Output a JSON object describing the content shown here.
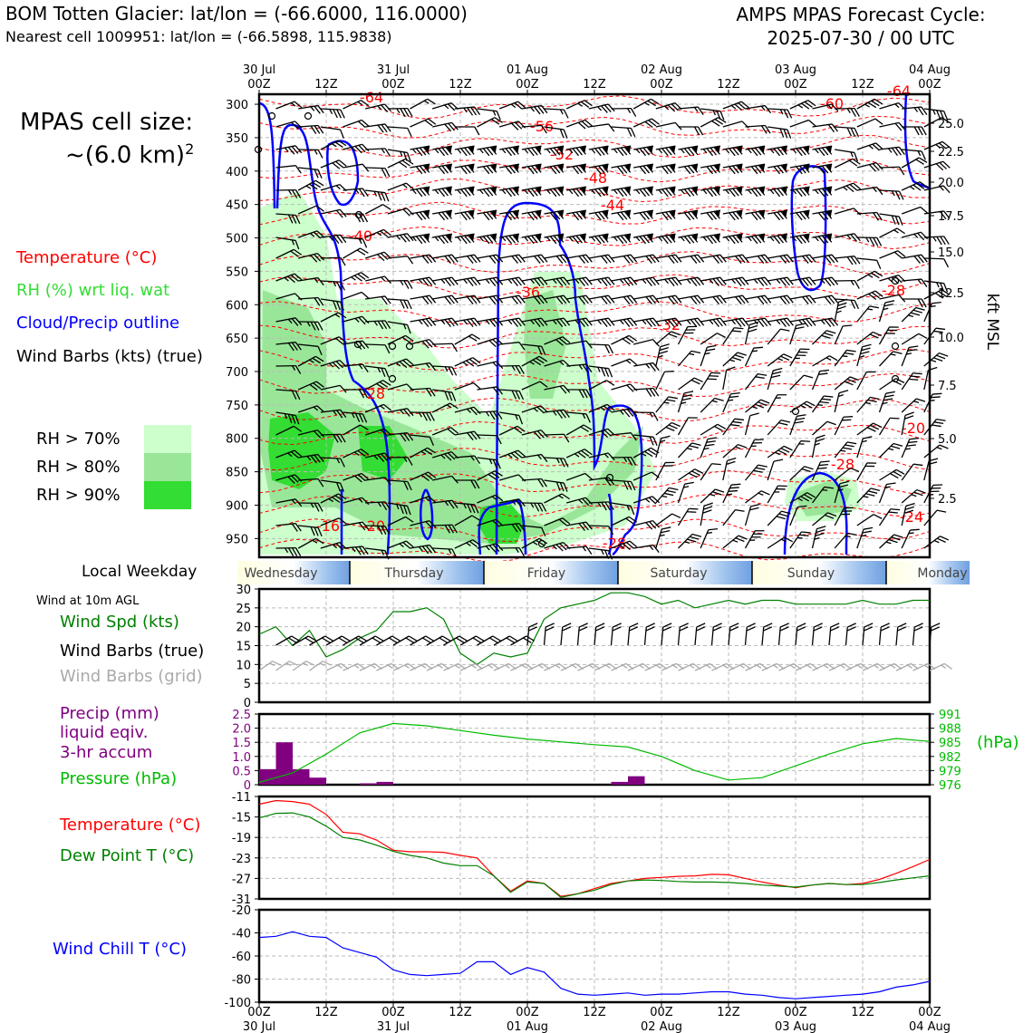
{
  "header": {
    "title": "BOM Totten Glacier: lat/lon = (-66.6000, 116.0000)",
    "subtitle": "Nearest cell 1009951: lat/lon = (-66.5898, 115.9838)",
    "cycle_line1": "AMPS MPAS Forecast Cycle:",
    "cycle_line2": "2025-07-30 / 00 UTC"
  },
  "cell_size": {
    "label": "MPAS cell size:",
    "value": "~(6.0 km)",
    "exponent": "2"
  },
  "legend": {
    "temperature": "Temperature (°C)",
    "rh": "RH (%) wrt liq. wat",
    "cloud": "Cloud/Precip outline",
    "wind_barbs": "Wind Barbs (kts) (true)"
  },
  "rh_key": [
    {
      "label": "RH > 70%",
      "color": "#ccffcc"
    },
    {
      "label": "RH > 80%",
      "color": "#99e699"
    },
    {
      "label": "RH > 90%",
      "color": "#33dd33"
    }
  ],
  "colors": {
    "temperature": "#ff0000",
    "rh_text": "#33dd33",
    "cloud": "#0000ff",
    "wind_speed": "#008000",
    "precip": "#800080",
    "pressure": "#00bb00",
    "dewpoint": "#008000",
    "wind_chill": "#0000ff",
    "grid_barb": "#aaaaaa"
  },
  "time_axis": {
    "top_hours": [
      "00Z",
      "12Z",
      "00Z",
      "12Z",
      "00Z",
      "12Z",
      "00Z",
      "12Z",
      "00Z",
      "12Z",
      "00Z"
    ],
    "dates": [
      "30 Jul",
      "31 Jul",
      "01 Aug",
      "02 Aug",
      "03 Aug",
      "04 Aug"
    ]
  },
  "weekday": {
    "label": "Local Weekday",
    "days": [
      "Wednesday",
      "Thursday",
      "Friday",
      "Saturday",
      "Sunday",
      "Monday"
    ]
  },
  "panels": {
    "wind": {
      "heading": "Wind at 10m AGL",
      "speed": "Wind Spd (kts)",
      "barbs_true": "Wind Barbs (true)",
      "barbs_grid": "Wind Barbs (grid)"
    },
    "precip": {
      "line1": "Precip (mm)",
      "line2": "liquid eqiv.",
      "line3": "3-hr accum",
      "pressure": "Pressure (hPa)",
      "pressure_unit": "(hPa)"
    },
    "temp": {
      "temperature": "Temperature (°C)",
      "dewpoint": "Dew Point T (°C)"
    },
    "windchill": {
      "label": "Wind Chill T (°C)"
    }
  },
  "chart_data": [
    {
      "type": "heatmap",
      "y_axis_ticks": [
        "300",
        "350",
        "400",
        "450",
        "500",
        "550",
        "600",
        "650",
        "700",
        "750",
        "800",
        "850",
        "900",
        "950"
      ],
      "y_axis_scale": "pressure (hPa), inverted",
      "right_axis_label": "kft MSL",
      "right_axis_ticks": [
        "25.0",
        "22.5",
        "20.0",
        "17.5",
        "15.0",
        "12.5",
        "10.0",
        "7.5",
        "5.0",
        "2.5"
      ],
      "temperature_contour_labels": [
        "-64",
        "-56",
        "-52",
        "-48",
        "-44",
        "-40",
        "-36",
        "-32",
        "-28",
        "-20",
        "-16",
        "-60",
        "-64",
        "-28",
        "-20",
        "-28",
        "-24",
        "-28"
      ]
    },
    {
      "type": "line",
      "name": "Wind Spd (kts)",
      "ylim": [
        0,
        30
      ],
      "y_ticks": [
        "0",
        "5",
        "10",
        "15",
        "20",
        "25",
        "30"
      ],
      "hours": [
        0,
        3,
        6,
        9,
        12,
        15,
        18,
        21,
        24,
        27,
        30,
        33,
        36,
        39,
        42,
        45,
        48,
        51,
        54,
        57,
        60,
        63,
        66,
        69,
        72,
        75,
        78,
        81,
        84,
        87,
        90,
        93,
        96,
        99,
        102,
        105,
        108,
        111,
        114,
        117,
        120
      ],
      "values": [
        18,
        20,
        15,
        19,
        12,
        14,
        17,
        19,
        24,
        24,
        25,
        22,
        13,
        10,
        13,
        12,
        13,
        22,
        25,
        26,
        27,
        29,
        29,
        28,
        26,
        27,
        25,
        26,
        27,
        26,
        27,
        27,
        26,
        26,
        26,
        26,
        27,
        26,
        26,
        27,
        27
      ]
    },
    {
      "type": "bar",
      "name": "Precip 3-hr accum (mm)",
      "ylim": [
        0,
        2.5
      ],
      "y_ticks": [
        "0",
        "0.5",
        "1.0",
        "1.5",
        "2.0",
        "2.5"
      ],
      "bars": [
        {
          "start_h": 0,
          "end_h": 3,
          "value": 0.55
        },
        {
          "start_h": 3,
          "end_h": 6,
          "value": 1.5
        },
        {
          "start_h": 6,
          "end_h": 9,
          "value": 0.55
        },
        {
          "start_h": 9,
          "end_h": 12,
          "value": 0.25
        },
        {
          "start_h": 18,
          "end_h": 21,
          "value": 0.05
        },
        {
          "start_h": 21,
          "end_h": 24,
          "value": 0.1
        },
        {
          "start_h": 63,
          "end_h": 66,
          "value": 0.1
        },
        {
          "start_h": 66,
          "end_h": 69,
          "value": 0.3
        }
      ]
    },
    {
      "type": "line",
      "name": "Pressure (hPa)",
      "ylim": [
        976,
        991
      ],
      "y_ticks": [
        "991",
        "988",
        "985",
        "982",
        "979",
        "976"
      ],
      "hours": [
        0,
        6,
        12,
        18,
        24,
        30,
        36,
        42,
        48,
        54,
        60,
        66,
        72,
        78,
        84,
        90,
        96,
        102,
        108,
        114,
        120
      ],
      "values": [
        976.5,
        978.5,
        982.5,
        987,
        989,
        988.5,
        987.5,
        986.5,
        985.7,
        985.1,
        984.5,
        984,
        982,
        979,
        977,
        977.5,
        980,
        982.5,
        984.7,
        985.8,
        985.2
      ]
    },
    {
      "type": "line",
      "name": "Temperature / Dew Point (°C)",
      "ylim": [
        -31,
        -11
      ],
      "y_ticks": [
        "-11",
        "-15",
        "-19",
        "-23",
        "-27",
        "-31"
      ],
      "hours": [
        0,
        3,
        6,
        9,
        12,
        15,
        18,
        21,
        24,
        27,
        30,
        33,
        36,
        39,
        42,
        45,
        48,
        51,
        54,
        57,
        60,
        63,
        66,
        69,
        72,
        75,
        78,
        81,
        84,
        87,
        90,
        93,
        96,
        99,
        102,
        105,
        108,
        111,
        114,
        117,
        120
      ],
      "series": [
        {
          "name": "Temperature (°C)",
          "values": [
            -12.5,
            -11.8,
            -12,
            -12.5,
            -14.5,
            -18,
            -18.3,
            -19.5,
            -21.5,
            -21.8,
            -21.8,
            -21.9,
            -22.5,
            -23,
            -26.5,
            -29.5,
            -27.5,
            -28,
            -30.5,
            -30,
            -29,
            -28,
            -27.5,
            -27,
            -26.8,
            -26.6,
            -26.5,
            -26.2,
            -26.3,
            -27,
            -27.7,
            -28.3,
            -28.8,
            -28.3,
            -28,
            -28.2,
            -28,
            -27.2,
            -26,
            -24.7,
            -23.3
          ]
        },
        {
          "name": "Dew Point T (°C)",
          "values": [
            -15.2,
            -14.3,
            -14.2,
            -15,
            -16.8,
            -19,
            -19.5,
            -20.5,
            -21.7,
            -22.5,
            -23,
            -24,
            -24.5,
            -24.5,
            -26.5,
            -29.7,
            -27.7,
            -28,
            -30.7,
            -30,
            -29.3,
            -28.2,
            -27.5,
            -27.3,
            -27.4,
            -27.6,
            -27.7,
            -27.7,
            -27.8,
            -28,
            -28.3,
            -28.5,
            -28.7,
            -28.3,
            -28,
            -28.2,
            -28.2,
            -27.8,
            -27.3,
            -26.9,
            -26.5
          ]
        }
      ]
    },
    {
      "type": "line",
      "name": "Wind Chill T (°C)",
      "ylim": [
        -100,
        -20
      ],
      "y_ticks": [
        "-20",
        "-40",
        "-60",
        "-80",
        "-100"
      ],
      "hours": [
        0,
        3,
        6,
        9,
        12,
        15,
        18,
        21,
        24,
        27,
        30,
        33,
        36,
        39,
        42,
        45,
        48,
        51,
        54,
        57,
        60,
        63,
        66,
        69,
        72,
        75,
        78,
        81,
        84,
        87,
        90,
        93,
        96,
        99,
        102,
        105,
        108,
        111,
        114,
        117,
        120
      ],
      "values": [
        -44,
        -43,
        -39,
        -43,
        -44,
        -53,
        -57,
        -61,
        -72,
        -76,
        -77,
        -76,
        -75,
        -65,
        -65,
        -76,
        -70,
        -74,
        -88,
        -93,
        -94,
        -93,
        -92,
        -94,
        -93,
        -93,
        -92,
        -91,
        -91,
        -93,
        -94,
        -96,
        -97,
        -96,
        -95,
        -94,
        -93,
        -91,
        -87,
        -85,
        -82
      ]
    }
  ]
}
